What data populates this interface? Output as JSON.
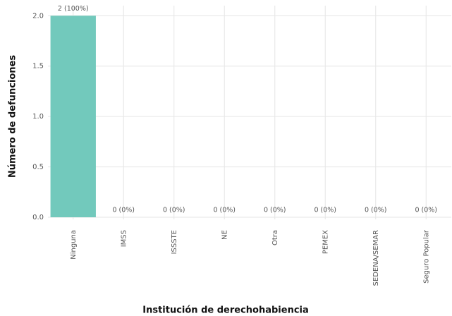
{
  "chart_data": {
    "type": "bar",
    "categories": [
      "Ninguna",
      "IMSS",
      "ISSSTE",
      "NE",
      "Otra",
      "PEMEX",
      "SEDENA/SEMAR",
      "Seguro Popular"
    ],
    "values": [
      2,
      0,
      0,
      0,
      0,
      0,
      0,
      0
    ],
    "value_labels": [
      "2 (100%)",
      "0 (0%)",
      "0 (0%)",
      "0 (0%)",
      "0 (0%)",
      "0 (0%)",
      "0 (0%)",
      "0 (0%)"
    ],
    "color": "#72c9bc",
    "ylim": [
      0,
      2.1
    ],
    "yticks": [
      {
        "value": 0,
        "label": "0.0"
      },
      {
        "value": 0.5,
        "label": "0.5"
      },
      {
        "value": 1,
        "label": "1.0"
      },
      {
        "value": 1.5,
        "label": "1.5"
      },
      {
        "value": 2,
        "label": "2.0"
      }
    ],
    "xlabel": "Institución de derechohabiencia",
    "ylabel": "Número de defunciones",
    "grid": true
  }
}
